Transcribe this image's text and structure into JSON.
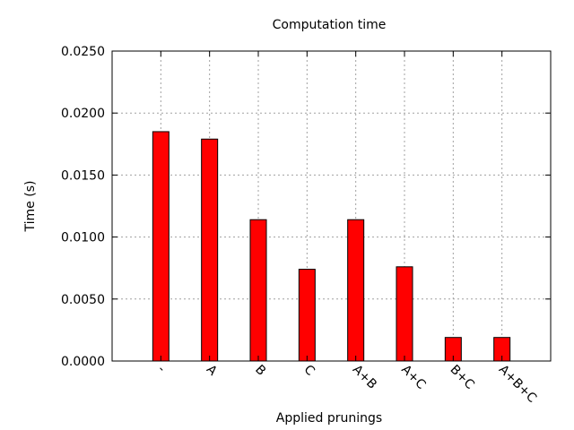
{
  "chart_data": {
    "type": "bar",
    "title": "Computation time",
    "xlabel": "Applied prunings",
    "ylabel": "Time (s)",
    "categories": [
      "-",
      "A",
      "B",
      "C",
      "A+B",
      "A+C",
      "B+C",
      "A+B+C"
    ],
    "values": [
      0.0185,
      0.0179,
      0.0114,
      0.0074,
      0.0114,
      0.0076,
      0.0019,
      0.0019
    ],
    "ylim": [
      0,
      0.025
    ],
    "yticks": [
      "0.0000",
      "0.0050",
      "0.0100",
      "0.0150",
      "0.0200",
      "0.0250"
    ],
    "grid": true,
    "bar_color": "#ff0000",
    "bar_edge_color": "#000000",
    "grid_color": "#a0a0a0"
  }
}
